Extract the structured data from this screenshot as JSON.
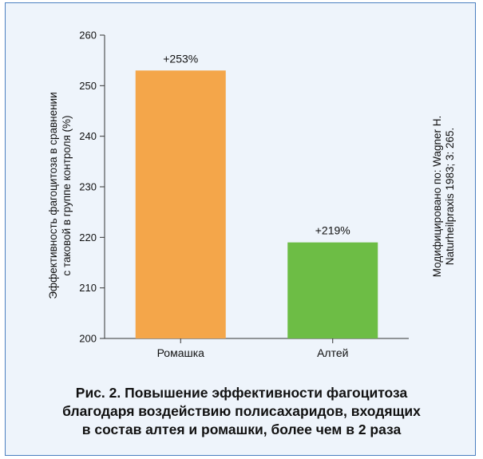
{
  "chart_data": {
    "type": "bar",
    "categories": [
      "Ромашка",
      "Алтей"
    ],
    "values": [
      253,
      219
    ],
    "data_labels": [
      "+253%",
      "+219%"
    ],
    "colors": [
      "#f4a64a",
      "#6dbd45"
    ],
    "ylabel_lines": [
      "Эффективность фагоцитоза в сравнении",
      "с таковой в группе контроля (%)"
    ],
    "xlabel": "",
    "ylim": [
      200,
      260
    ],
    "yticks": [
      200,
      210,
      220,
      230,
      240,
      250,
      260
    ],
    "grid": false
  },
  "source_note_lines": [
    "Модифицировано по: Wagner H.",
    "Naturheilpraxis 1983; 3: 265."
  ],
  "caption_lines": [
    "Рис. 2. Повышение эффективности фагоцитоза",
    "благодаря воздействию полисахаридов, входящих",
    "в состав алтея и ромашки, более чем в 2 раза"
  ],
  "colors": {
    "frame_border": "#4a7fc0",
    "background": "#eef4fb",
    "axis": "#333333"
  }
}
